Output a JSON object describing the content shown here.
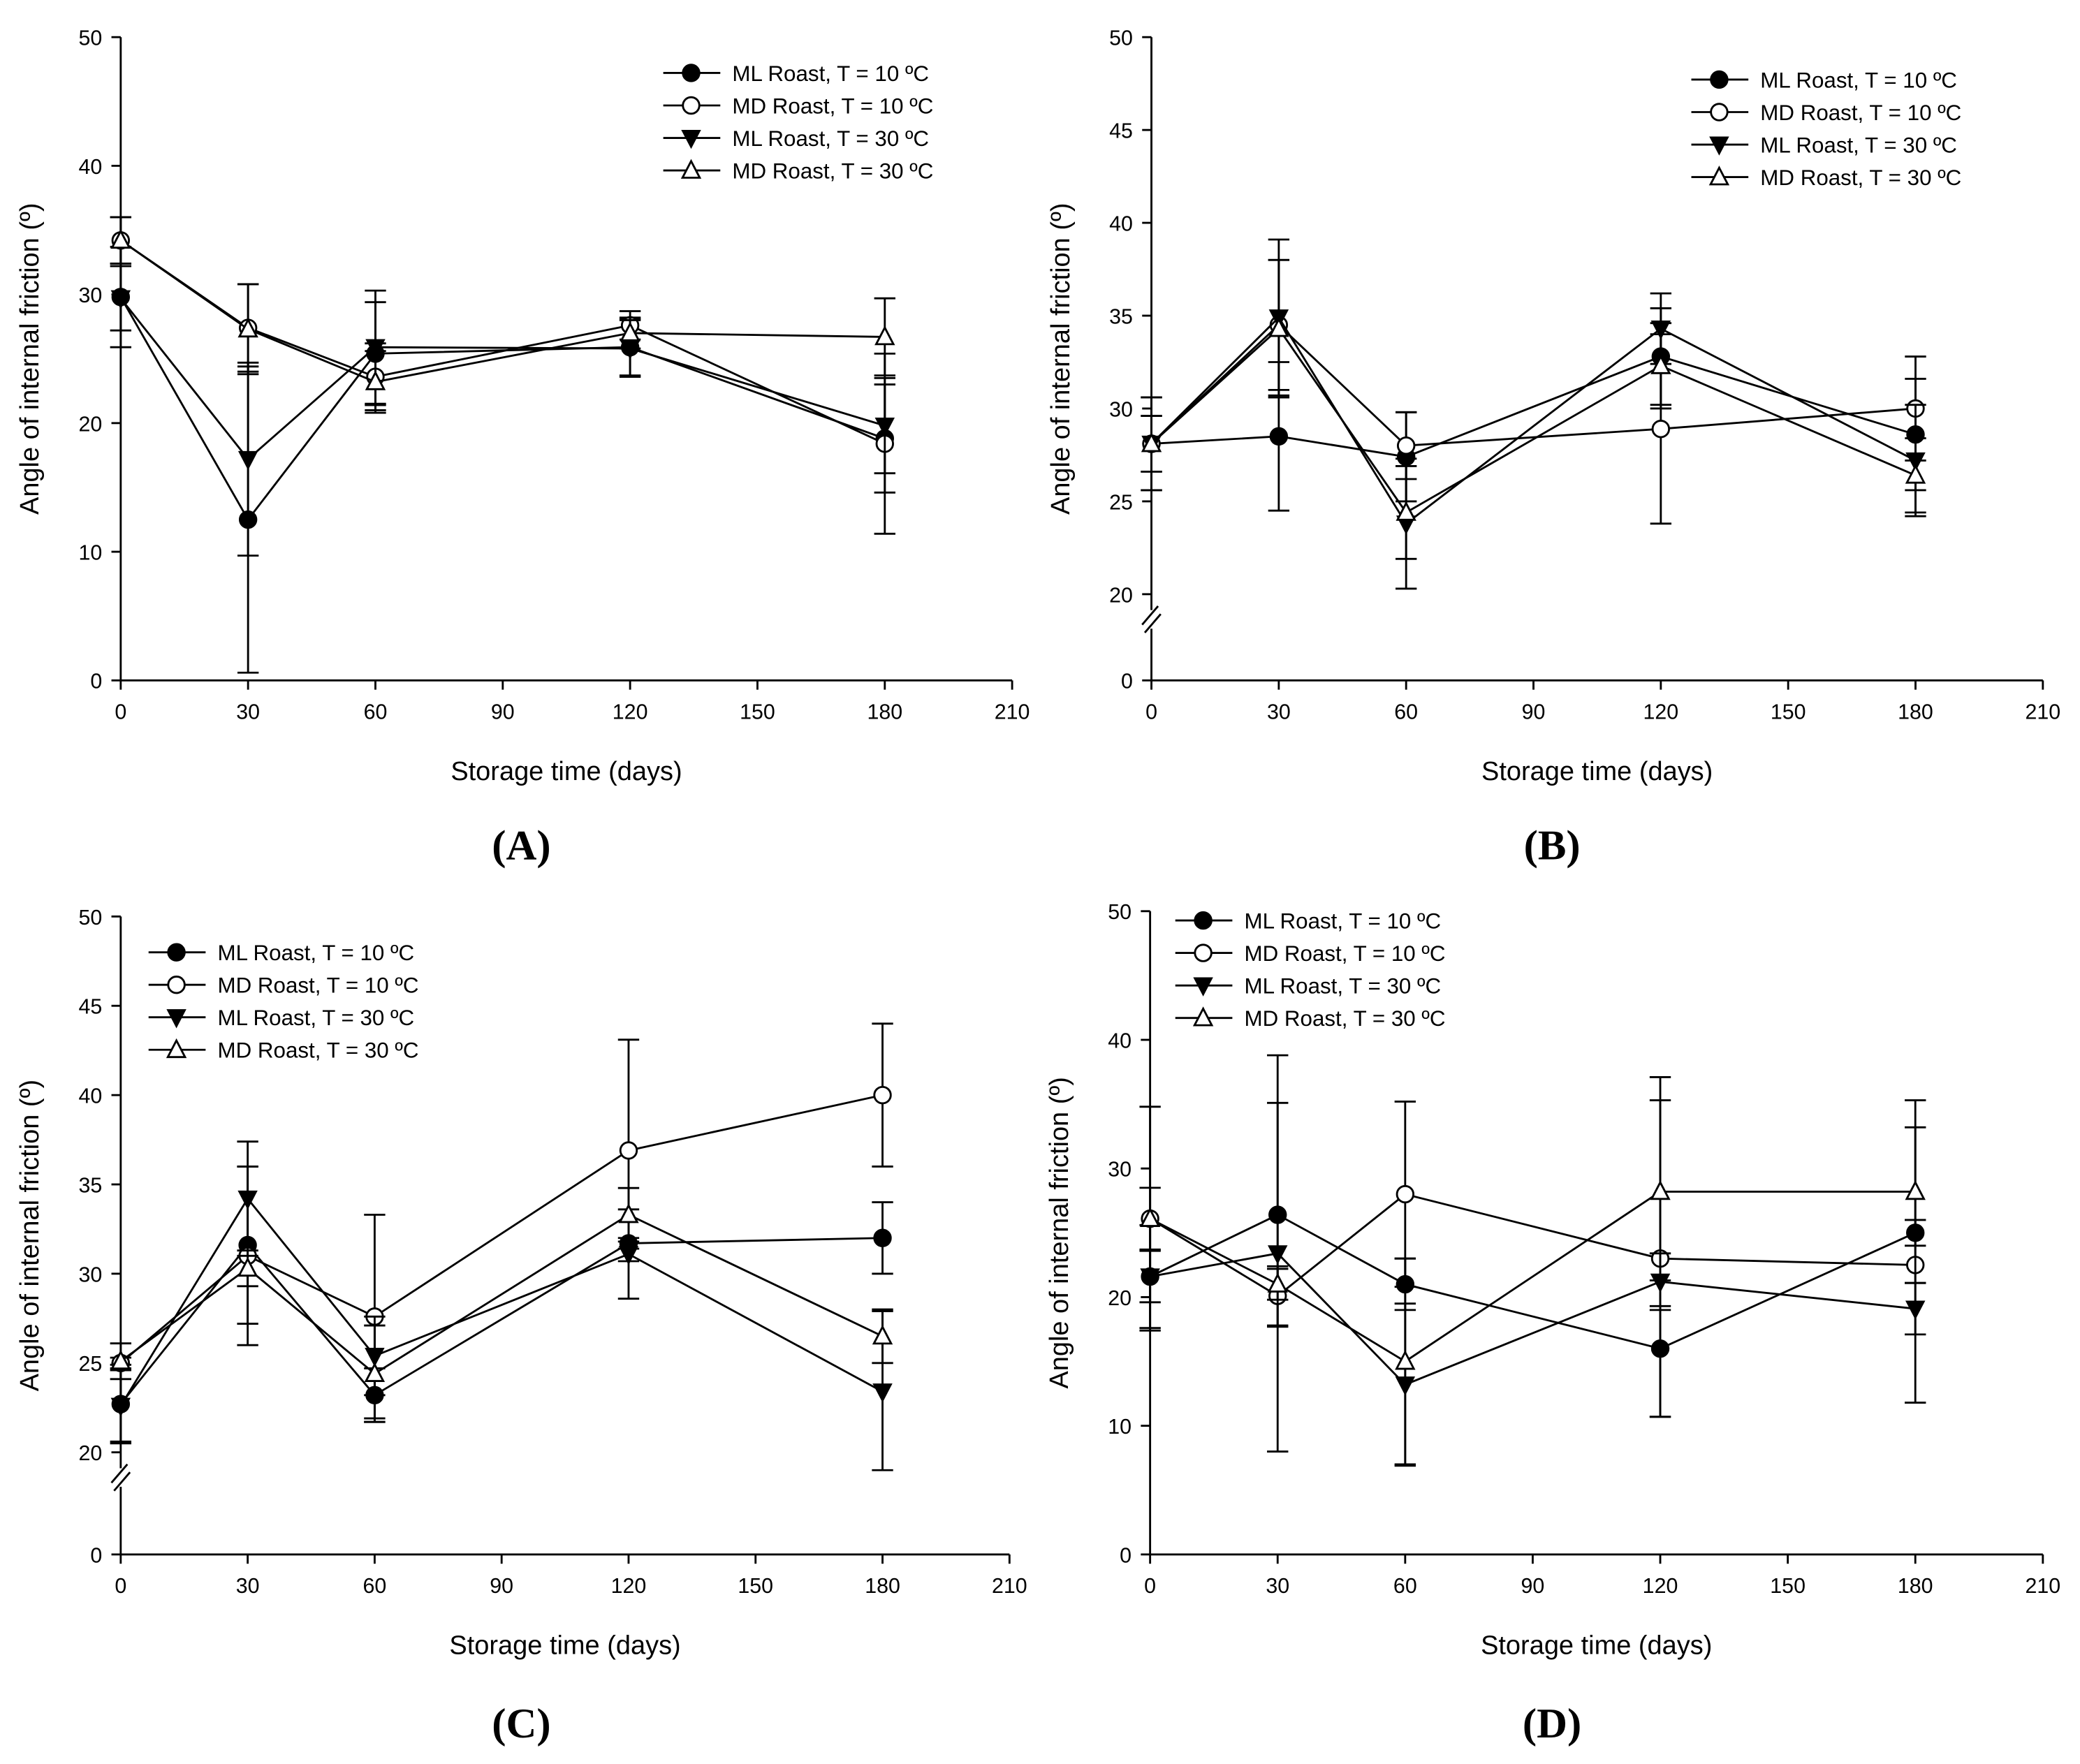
{
  "chart_data": [
    {
      "type": "line",
      "panel_label": "(A)",
      "xlabel": "Storage time (days)",
      "ylabel": "Angle of internal friction (º)",
      "xlim": [
        0,
        210
      ],
      "xticks": [
        0,
        30,
        60,
        90,
        120,
        150,
        180,
        210
      ],
      "ylim": [
        0,
        50
      ],
      "yticks": [
        0,
        10,
        20,
        30,
        40,
        50
      ],
      "axis_break": null,
      "legend_position": "top-right",
      "x": [
        0,
        30,
        60,
        120,
        180
      ],
      "series": [
        {
          "name": "ML Roast, T = 10 ºC",
          "marker": "filled-circle",
          "values": [
            29.8,
            12.5,
            25.4,
            25.9,
            18.8
          ],
          "errors": [
            3.9,
            11.9,
            4.0,
            2.2,
            4.2
          ]
        },
        {
          "name": "MD Roast, T = 10 ºC",
          "marker": "open-circle",
          "values": [
            34.2,
            27.4,
            23.6,
            27.6,
            18.4
          ],
          "errors": [
            1.8,
            3.4,
            2.6,
            1.1,
            7.0
          ]
        },
        {
          "name": "ML Roast, T = 30 ºC",
          "marker": "filled-triangle-down",
          "values": [
            29.7,
            17.2,
            25.9,
            25.8,
            19.8
          ],
          "errors": [
            2.5,
            7.5,
            4.4,
            2.2,
            3.7
          ]
        },
        {
          "name": "MD Roast, T = 30 ºC",
          "marker": "open-triangle-up",
          "values": [
            34.2,
            27.3,
            23.2,
            27.0,
            26.7
          ],
          "errors": [
            1.8,
            3.5,
            2.4,
            1.2,
            3.0
          ]
        }
      ]
    },
    {
      "type": "line",
      "panel_label": "(B)",
      "xlabel": "Storage time (days)",
      "ylabel": "Angle of internal friction (º)",
      "xlim": [
        0,
        210
      ],
      "xticks": [
        0,
        30,
        60,
        90,
        120,
        150,
        180,
        210
      ],
      "ylim": [
        0,
        50
      ],
      "yticks": [
        0,
        20,
        25,
        30,
        35,
        40,
        45,
        50
      ],
      "axis_break": [
        0,
        20
      ],
      "legend_position": "top-right",
      "x": [
        0,
        30,
        60,
        120,
        180
      ],
      "series": [
        {
          "name": "ML Roast, T = 10 ºC",
          "marker": "filled-circle",
          "values": [
            28.1,
            28.5,
            27.4,
            32.8,
            28.6
          ],
          "errors": [
            2.5,
            4.0,
            2.4,
            2.6,
            3.0
          ]
        },
        {
          "name": "MD Roast, T = 10 ºC",
          "marker": "open-circle",
          "values": [
            28.1,
            34.5,
            28.0,
            28.9,
            30.0
          ],
          "errors": [
            2.5,
            3.5,
            1.8,
            5.1,
            2.8
          ]
        },
        {
          "name": "ML Roast, T = 30 ºC",
          "marker": "filled-triangle-down",
          "values": [
            28.1,
            34.9,
            23.8,
            34.3,
            27.2
          ],
          "errors": [
            1.5,
            4.2,
            3.5,
            1.9,
            3.0
          ]
        },
        {
          "name": "MD Roast, T = 30 ºC",
          "marker": "open-triangle-up",
          "values": [
            28.1,
            34.3,
            24.4,
            32.3,
            26.4
          ],
          "errors": [
            1.5,
            3.7,
            2.5,
            2.3,
            2.0
          ]
        }
      ]
    },
    {
      "type": "line",
      "panel_label": "(C)",
      "xlabel": "Storage time (days)",
      "ylabel": "Angle of internal friction (º)",
      "xlim": [
        0,
        210
      ],
      "xticks": [
        0,
        30,
        60,
        90,
        120,
        150,
        180,
        210
      ],
      "ylim": [
        0,
        50
      ],
      "yticks": [
        0,
        20,
        25,
        30,
        35,
        40,
        45,
        50
      ],
      "axis_break": [
        0,
        20
      ],
      "legend_position": "top-left",
      "x": [
        0,
        30,
        60,
        120,
        180
      ],
      "series": [
        {
          "name": "ML Roast, T = 10 ºC",
          "marker": "filled-circle",
          "values": [
            22.7,
            31.6,
            23.2,
            31.7,
            32.0
          ],
          "errors": [
            2.2,
            4.4,
            1.5,
            0.3,
            2.0
          ]
        },
        {
          "name": "MD Roast, T = 10 ºC",
          "marker": "open-circle",
          "values": [
            25.0,
            31.0,
            27.6,
            36.9,
            40.0
          ],
          "errors": [
            0.3,
            5.0,
            5.7,
            6.2,
            4.0
          ]
        },
        {
          "name": "ML Roast, T = 30 ºC",
          "marker": "filled-triangle-down",
          "values": [
            22.6,
            34.2,
            25.4,
            31.1,
            23.4
          ],
          "errors": [
            2.0,
            3.2,
            2.2,
            2.5,
            4.5
          ]
        },
        {
          "name": "MD Roast, T = 30 ºC",
          "marker": "open-triangle-up",
          "values": [
            25.1,
            30.3,
            24.4,
            33.3,
            26.5
          ],
          "errors": [
            1.0,
            1.0,
            2.7,
            1.5,
            1.5
          ]
        }
      ]
    },
    {
      "type": "line",
      "panel_label": "(D)",
      "xlabel": "Storage time (days)",
      "ylabel": "Angle of internal friction (º)",
      "xlim": [
        0,
        210
      ],
      "xticks": [
        0,
        30,
        60,
        90,
        120,
        150,
        180,
        210
      ],
      "ylim": [
        0,
        50
      ],
      "yticks": [
        0,
        10,
        20,
        30,
        40,
        50
      ],
      "axis_break": null,
      "legend_position": "top-left",
      "x": [
        0,
        30,
        60,
        120,
        180
      ],
      "series": [
        {
          "name": "ML Roast, T = 10 ºC",
          "marker": "filled-circle",
          "values": [
            21.6,
            26.4,
            21.0,
            16.0,
            25.0
          ],
          "errors": [
            4.0,
            8.7,
            2.0,
            5.3,
            1.0
          ]
        },
        {
          "name": "MD Roast, T = 10 ºC",
          "marker": "open-circle",
          "values": [
            26.1,
            20.1,
            28.0,
            23.0,
            22.5
          ],
          "errors": [
            8.7,
            2.3,
            7.2,
            12.3,
            10.7
          ]
        },
        {
          "name": "ML Roast, T = 30 ºC",
          "marker": "filled-triangle-down",
          "values": [
            21.6,
            23.4,
            13.2,
            21.2,
            19.1
          ],
          "errors": [
            2.0,
            15.4,
            6.3,
            2.2,
            2.0
          ]
        },
        {
          "name": "MD Roast, T = 30 ºC",
          "marker": "open-triangle-up",
          "values": [
            26.1,
            21.0,
            15.0,
            28.2,
            28.2
          ],
          "errors": [
            2.4,
            1.2,
            8.0,
            8.9,
            7.1
          ]
        }
      ]
    }
  ]
}
